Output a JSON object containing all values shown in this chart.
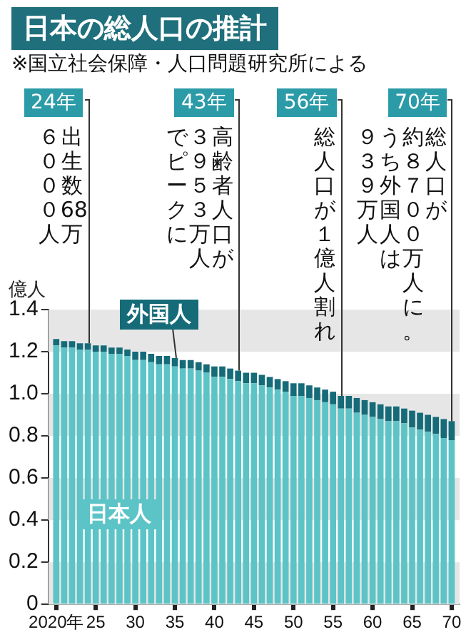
{
  "chart_data": {
    "type": "bar",
    "stacked": true,
    "title": "日本の総人口の推計",
    "subtitle": "※国立社会保障・人口問題研究所による",
    "ylabel": "億人",
    "x": [
      2020,
      2021,
      2022,
      2023,
      2024,
      2025,
      2026,
      2027,
      2028,
      2029,
      2030,
      2031,
      2032,
      2033,
      2034,
      2035,
      2036,
      2037,
      2038,
      2039,
      2040,
      2041,
      2042,
      2043,
      2044,
      2045,
      2046,
      2047,
      2048,
      2049,
      2050,
      2051,
      2052,
      2053,
      2054,
      2055,
      2056,
      2057,
      2058,
      2059,
      2060,
      2061,
      2062,
      2063,
      2064,
      2065,
      2066,
      2067,
      2068,
      2069,
      2070
    ],
    "series": [
      {
        "name": "日本人",
        "color": "#5cc4c6",
        "values": [
          1.23,
          1.22,
          1.22,
          1.21,
          1.21,
          1.2,
          1.2,
          1.19,
          1.19,
          1.18,
          1.16,
          1.16,
          1.15,
          1.14,
          1.14,
          1.13,
          1.12,
          1.12,
          1.11,
          1.1,
          1.08,
          1.08,
          1.07,
          1.06,
          1.05,
          1.05,
          1.04,
          1.03,
          1.02,
          1.01,
          0.99,
          0.99,
          0.98,
          0.97,
          0.96,
          0.95,
          0.93,
          0.93,
          0.91,
          0.9,
          0.89,
          0.88,
          0.87,
          0.87,
          0.86,
          0.84,
          0.83,
          0.82,
          0.81,
          0.79,
          0.78
        ]
      },
      {
        "name": "外国人",
        "color": "#156b78",
        "values": [
          0.03,
          0.03,
          0.03,
          0.03,
          0.03,
          0.03,
          0.03,
          0.03,
          0.03,
          0.03,
          0.04,
          0.04,
          0.04,
          0.04,
          0.04,
          0.04,
          0.04,
          0.04,
          0.04,
          0.04,
          0.05,
          0.05,
          0.05,
          0.05,
          0.05,
          0.05,
          0.05,
          0.05,
          0.05,
          0.05,
          0.06,
          0.06,
          0.06,
          0.06,
          0.06,
          0.06,
          0.06,
          0.06,
          0.07,
          0.07,
          0.07,
          0.07,
          0.07,
          0.07,
          0.07,
          0.08,
          0.08,
          0.08,
          0.08,
          0.09,
          0.09
        ]
      }
    ],
    "xlim": [
      2019,
      2071
    ],
    "xticks": [
      {
        "value": 2020,
        "label": "2020年"
      },
      {
        "value": 2025,
        "label": "25"
      },
      {
        "value": 2030,
        "label": "30"
      },
      {
        "value": 2035,
        "label": "35"
      },
      {
        "value": 2040,
        "label": "40"
      },
      {
        "value": 2045,
        "label": "45"
      },
      {
        "value": 2050,
        "label": "50"
      },
      {
        "value": 2055,
        "label": "55"
      },
      {
        "value": 2060,
        "label": "60"
      },
      {
        "value": 2065,
        "label": "65"
      },
      {
        "value": 2070,
        "label": "70"
      }
    ],
    "ylim": [
      0,
      1.4
    ],
    "yticks": [
      0,
      0.2,
      0.4,
      0.6,
      0.8,
      {
        "value": 1,
        "label": "1.0"
      },
      1.2,
      1.4
    ],
    "bands": [
      {
        "axis": "y",
        "from": 0,
        "to": 0.2,
        "color": "#e6e6e6"
      },
      {
        "axis": "y",
        "from": 0.4,
        "to": 0.6,
        "color": "#e6e6e6"
      },
      {
        "axis": "y",
        "from": 0.8,
        "to": 1,
        "color": "#e6e6e6"
      },
      {
        "axis": "y",
        "from": 1.2,
        "to": 1.4,
        "color": "#e6e6e6"
      }
    ],
    "annotations": [
      {
        "text": "24年",
        "x": 2024,
        "y": 1.24
      },
      "出生数68万",
      "６０００人",
      {
        "text": "43年",
        "x": 2043,
        "y": 1.11
      },
      "高齢者人口が",
      "３９５３万人",
      "でピークに",
      {
        "text": "56年",
        "x": 2056,
        "y": 0.99
      },
      "総人口が１億人割れ",
      {
        "text": "70年",
        "x": 2070,
        "y": 0.87
      },
      "総人口が",
      "約８７００万人に。",
      "うち外国人は",
      "９３９万人"
    ]
  }
}
